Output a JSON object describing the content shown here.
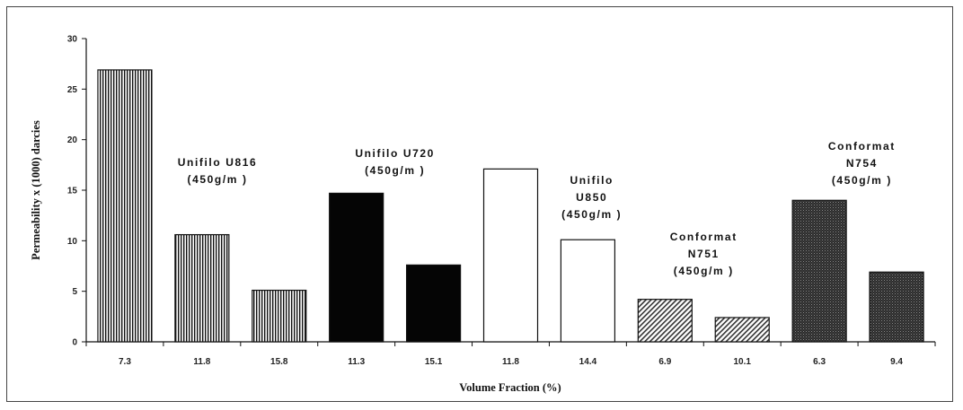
{
  "chart_data": {
    "type": "bar",
    "xlabel": "Volume Fraction (%)",
    "ylabel": "Permeability x (1000) darcies",
    "ylim": [
      0,
      30
    ],
    "yticks": [
      "0",
      "5",
      "10",
      "15",
      "20",
      "25",
      "30"
    ],
    "grid": false,
    "categories": [
      "7.3",
      "11.8",
      "15.8",
      "11.3",
      "15.1",
      "11.8",
      "14.4",
      "6.9",
      "10.1",
      "6.3",
      "9.4"
    ],
    "values": [
      26.9,
      10.6,
      5.1,
      14.7,
      7.6,
      17.1,
      10.1,
      4.2,
      2.4,
      14.0,
      6.9
    ],
    "groups": [
      {
        "lines": [
          "Unifilo U816",
          "(450g/m )"
        ],
        "bars": [
          0,
          1,
          2
        ],
        "pattern": "vertical-stripes"
      },
      {
        "lines": [
          "Unifilo U720",
          "(450g/m )"
        ],
        "bars": [
          3,
          4
        ],
        "pattern": "solid-black"
      },
      {
        "lines": [
          "Unifilo",
          "U850",
          "(450g/m )"
        ],
        "bars": [
          5,
          6
        ],
        "pattern": "white"
      },
      {
        "lines": [
          "Conformat",
          "N751",
          "(450g/m )"
        ],
        "bars": [
          7,
          8
        ],
        "pattern": "diagonal-hatch"
      },
      {
        "lines": [
          "Conformat",
          "N754",
          "(450g/m )"
        ],
        "bars": [
          9,
          10
        ],
        "pattern": "dark-crosshatch"
      }
    ]
  }
}
